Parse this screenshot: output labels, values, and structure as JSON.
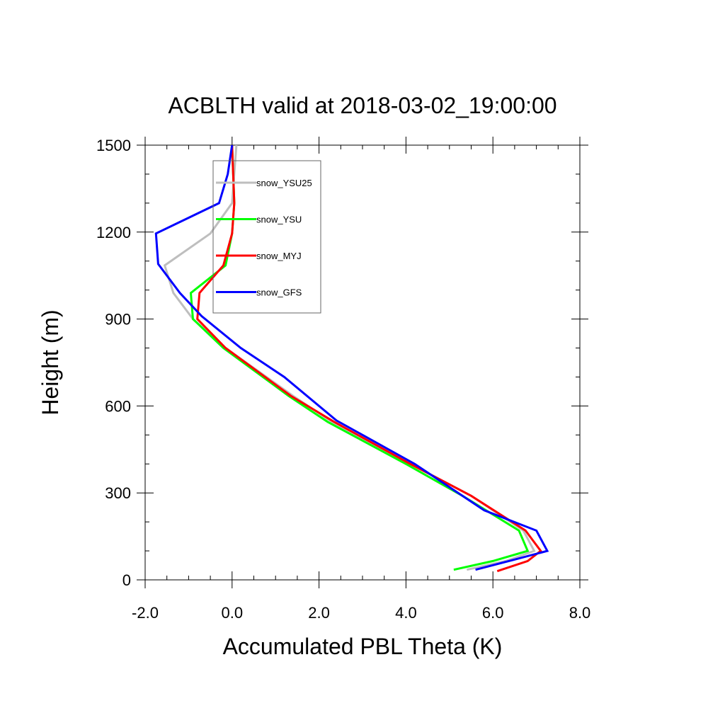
{
  "chart_data": {
    "type": "line",
    "title": "ACBLTH valid at 2018-03-02_19:00:00",
    "xlabel": "Accumulated PBL Theta (K)",
    "ylabel": "Height (m)",
    "xlim": [
      -2.0,
      8.0
    ],
    "ylim": [
      0,
      1500
    ],
    "x_ticks": [
      -2.0,
      0.0,
      2.0,
      4.0,
      6.0,
      8.0
    ],
    "x_tick_labels": [
      "-2.0",
      "0.0",
      "2.0",
      "4.0",
      "6.0",
      "8.0"
    ],
    "y_ticks": [
      0,
      300,
      600,
      900,
      1200,
      1500
    ],
    "y_tick_labels": [
      "0",
      "300",
      "600",
      "900",
      "1200",
      "1500"
    ],
    "grid": false,
    "legend_position": "top-left",
    "series": [
      {
        "name": "snow_YSU25",
        "color": "#bebebe",
        "points": [
          [
            0.1,
            1500
          ],
          [
            0.0,
            1300
          ],
          [
            -0.5,
            1195
          ],
          [
            -1.55,
            1085
          ],
          [
            -1.35,
            990
          ],
          [
            -0.9,
            900
          ],
          [
            -0.15,
            800
          ],
          [
            1.4,
            635
          ],
          [
            2.3,
            545
          ],
          [
            4.1,
            400
          ],
          [
            5.5,
            290
          ],
          [
            6.7,
            170
          ],
          [
            6.95,
            100
          ],
          [
            6.3,
            65
          ],
          [
            5.4,
            35
          ]
        ]
      },
      {
        "name": "snow_YSU",
        "color": "#00ff00",
        "points": [
          [
            0.0,
            1500
          ],
          [
            0.05,
            1300
          ],
          [
            0.0,
            1195
          ],
          [
            -0.15,
            1085
          ],
          [
            -0.95,
            990
          ],
          [
            -0.9,
            900
          ],
          [
            -0.2,
            800
          ],
          [
            1.3,
            635
          ],
          [
            2.2,
            545
          ],
          [
            4.0,
            400
          ],
          [
            5.3,
            290
          ],
          [
            6.6,
            170
          ],
          [
            6.8,
            100
          ],
          [
            6.0,
            65
          ],
          [
            5.1,
            35
          ]
        ]
      },
      {
        "name": "snow_MYJ",
        "color": "#ff0000",
        "points": [
          [
            0.0,
            1500
          ],
          [
            0.05,
            1300
          ],
          [
            0.0,
            1195
          ],
          [
            -0.2,
            1085
          ],
          [
            -0.75,
            990
          ],
          [
            -0.8,
            900
          ],
          [
            -0.15,
            800
          ],
          [
            1.35,
            635
          ],
          [
            2.35,
            545
          ],
          [
            4.1,
            400
          ],
          [
            5.5,
            290
          ],
          [
            6.75,
            170
          ],
          [
            7.1,
            100
          ],
          [
            6.8,
            65
          ],
          [
            6.1,
            30
          ]
        ]
      },
      {
        "name": "snow_GFS",
        "color": "#0000ff",
        "points": [
          [
            0.0,
            1500
          ],
          [
            -0.1,
            1400
          ],
          [
            -0.3,
            1300
          ],
          [
            -1.75,
            1195
          ],
          [
            -1.7,
            1090
          ],
          [
            -1.2,
            990
          ],
          [
            -0.7,
            910
          ],
          [
            0.2,
            800
          ],
          [
            1.2,
            700
          ],
          [
            2.4,
            550
          ],
          [
            4.2,
            400
          ],
          [
            5.8,
            240
          ],
          [
            7.0,
            170
          ],
          [
            7.25,
            100
          ],
          [
            6.5,
            70
          ],
          [
            5.6,
            35
          ]
        ]
      }
    ]
  }
}
